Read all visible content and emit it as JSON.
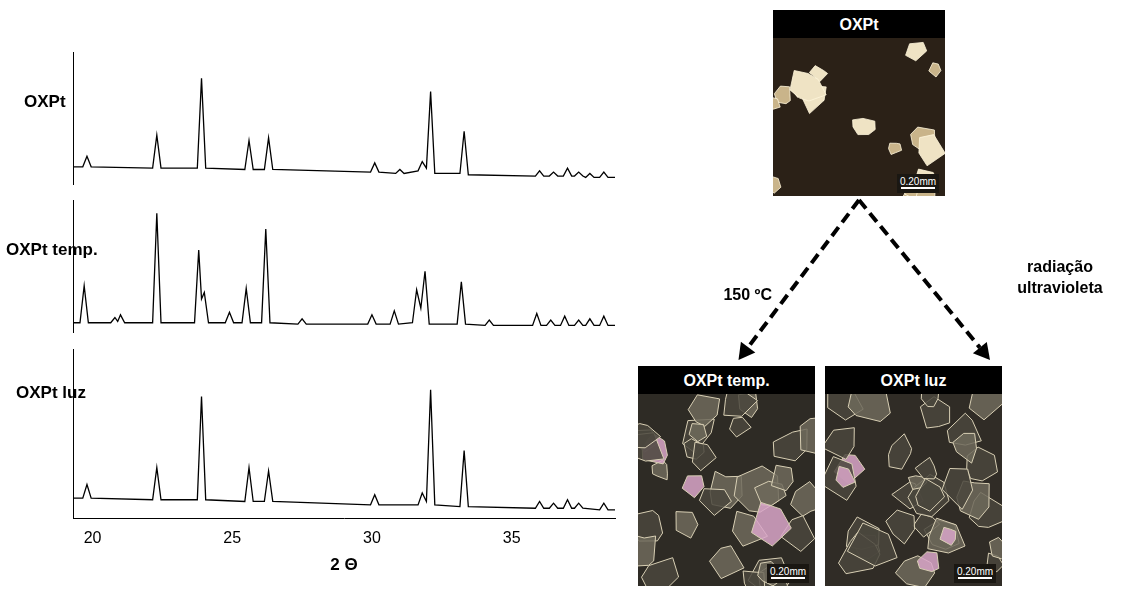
{
  "chart_data": [
    {
      "type": "line",
      "title": "OXPt",
      "color": "#000000",
      "grid": false,
      "tick_labels": false,
      "xlim": [
        19.3,
        38.7
      ],
      "ylim": [
        0,
        100
      ],
      "x": [
        19.3,
        19.65,
        19.8,
        19.95,
        22.15,
        22.3,
        22.45,
        23.75,
        23.9,
        24.05,
        25.45,
        25.6,
        25.75,
        26.15,
        26.3,
        26.45,
        29.95,
        30.1,
        30.25,
        30.85,
        31.0,
        31.15,
        31.65,
        31.8,
        31.95,
        32.1,
        32.25,
        33.15,
        33.3,
        33.45,
        35.85,
        36.0,
        36.15,
        36.35,
        36.5,
        36.65,
        36.85,
        37.0,
        37.15,
        37.25,
        37.4,
        37.55,
        37.65,
        37.8,
        37.95,
        38.15,
        38.3,
        38.45,
        38.7
      ],
      "values": [
        13,
        13,
        21,
        13,
        12,
        37,
        12,
        12,
        80,
        12,
        11,
        33,
        11,
        11,
        35,
        11,
        9,
        16,
        9,
        8,
        11,
        8,
        10,
        17,
        12,
        70,
        8,
        8,
        40,
        7,
        6,
        10,
        6,
        6,
        9,
        6,
        6,
        12,
        6,
        6,
        9,
        6,
        5,
        8,
        5,
        5,
        9,
        5,
        5
      ]
    },
    {
      "type": "line",
      "title": "OXPt temp.",
      "color": "#000000",
      "grid": false,
      "tick_labels": false,
      "xlim": [
        19.3,
        38.7
      ],
      "ylim": [
        0,
        100
      ],
      "x": [
        19.3,
        19.55,
        19.7,
        19.85,
        20.65,
        20.8,
        20.9,
        21.0,
        21.15,
        22.15,
        22.3,
        22.45,
        23.65,
        23.8,
        23.9,
        24.0,
        24.15,
        24.75,
        24.9,
        25.05,
        25.35,
        25.5,
        25.65,
        26.05,
        26.2,
        26.35,
        27.35,
        27.5,
        27.65,
        29.85,
        30.0,
        30.15,
        30.65,
        30.8,
        30.95,
        31.45,
        31.6,
        31.75,
        31.9,
        32.05,
        33.05,
        33.2,
        33.35,
        34.05,
        34.2,
        34.35,
        35.75,
        35.9,
        36.05,
        36.25,
        36.4,
        36.55,
        36.75,
        36.9,
        37.05,
        37.25,
        37.4,
        37.55,
        37.65,
        37.8,
        37.95,
        38.15,
        38.3,
        38.45,
        38.7
      ],
      "values": [
        7,
        7,
        35,
        7,
        7,
        11,
        8,
        13,
        7,
        7,
        90,
        7,
        7,
        62,
        25,
        30,
        7,
        7,
        15,
        7,
        7,
        33,
        7,
        7,
        78,
        7,
        6,
        10,
        6,
        6,
        13,
        6,
        6,
        16,
        6,
        7,
        32,
        18,
        46,
        6,
        6,
        38,
        6,
        5,
        9,
        5,
        5,
        14,
        5,
        5,
        9,
        5,
        5,
        12,
        5,
        5,
        9,
        5,
        5,
        10,
        5,
        5,
        12,
        5,
        5
      ]
    },
    {
      "type": "line",
      "title": "OXPt luz",
      "color": "#000000",
      "grid": false,
      "tick_labels": "x",
      "x_label": "2 Θ",
      "xlim": [
        19.3,
        38.7
      ],
      "xticks": [
        20,
        25,
        30,
        35
      ],
      "ylim": [
        0,
        100
      ],
      "x": [
        19.3,
        19.65,
        19.8,
        19.95,
        22.15,
        22.3,
        22.45,
        23.75,
        23.9,
        24.05,
        25.45,
        25.6,
        25.75,
        26.15,
        26.3,
        26.45,
        29.95,
        30.1,
        30.25,
        31.65,
        31.8,
        31.95,
        32.1,
        32.25,
        33.15,
        33.3,
        33.45,
        35.85,
        36.0,
        36.15,
        36.35,
        36.5,
        36.65,
        36.85,
        37.0,
        37.15,
        37.25,
        37.4,
        37.55,
        38.15,
        38.3,
        38.45,
        38.7
      ],
      "values": [
        12,
        12,
        20,
        12,
        11,
        30,
        11,
        11,
        72,
        11,
        10,
        30,
        10,
        10,
        28,
        10,
        8,
        14,
        8,
        8,
        15,
        10,
        76,
        8,
        7,
        40,
        7,
        6,
        10,
        6,
        6,
        9,
        6,
        6,
        11,
        6,
        6,
        9,
        6,
        5,
        9,
        5,
        5
      ]
    }
  ],
  "micrographs": [
    {
      "title": "OXPt",
      "scale_bar": "0.20mm"
    },
    {
      "title": "OXPt temp.",
      "scale_bar": "0.20mm"
    },
    {
      "title": "OXPt luz",
      "scale_bar": "0.20mm"
    }
  ],
  "arrows": [
    {
      "from": "OXPt",
      "to": "OXPt temp.",
      "label": "150 ºC"
    },
    {
      "from": "OXPt",
      "to": "OXPt luz",
      "label": "radiação ultravioleta"
    }
  ]
}
